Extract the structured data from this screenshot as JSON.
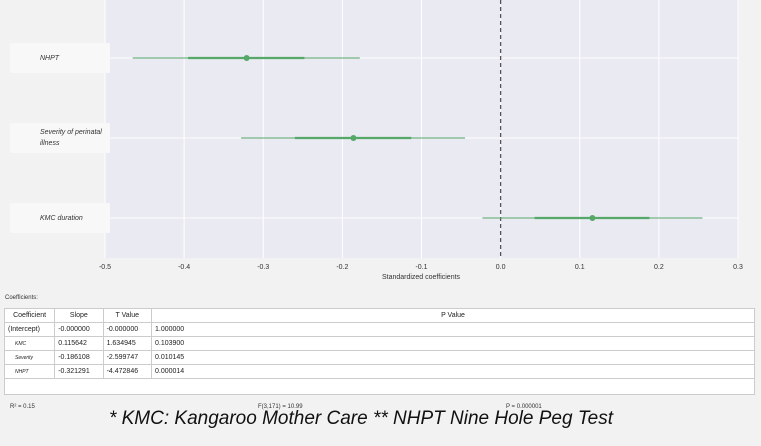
{
  "chart_data": {
    "type": "forest",
    "categories": [
      "NHPT",
      "Severity of perinatal illness",
      "KMC duration"
    ],
    "estimates": [
      -0.321,
      -0.186,
      0.116
    ],
    "ci_inner": [
      [
        -0.395,
        -0.248
      ],
      [
        -0.26,
        -0.113
      ],
      [
        0.043,
        0.188
      ]
    ],
    "ci_outer": [
      [
        -0.465,
        -0.178
      ],
      [
        -0.328,
        -0.045
      ],
      [
        -0.023,
        0.255
      ]
    ],
    "color": "#55a868",
    "xlabel": "Standardized coefficients",
    "xlim": [
      -0.5,
      0.3
    ],
    "xticks": [
      -0.5,
      -0.4,
      -0.3,
      -0.2,
      -0.1,
      {
        "value": 0,
        "label": "0.0"
      },
      0.1,
      0.2,
      0.3
    ],
    "zero_line": 0,
    "grid": true
  },
  "table": {
    "caption": "Coefficients:",
    "header": [
      "Coefficient",
      "Slope",
      "T Value",
      "P Value"
    ],
    "rows": [
      [
        "(Intercept)",
        "-0.000000",
        "-0.000000",
        "1.000000"
      ],
      [
        "KMC",
        "0.115642",
        "1.634945",
        "0.103900"
      ],
      [
        "Severity",
        "-0.186108",
        "-2.599747",
        "0.010145"
      ],
      [
        "NHPT",
        "-0.321291",
        "-4.472846",
        "0.000014"
      ]
    ]
  },
  "footer": {
    "r2": "R² = 0.15",
    "f": "F(3,171) = 10.99",
    "p": "P = 0.000001"
  },
  "note": "* KMC: Kangaroo Mother Care  ** NHPT Nine Hole Peg Test"
}
